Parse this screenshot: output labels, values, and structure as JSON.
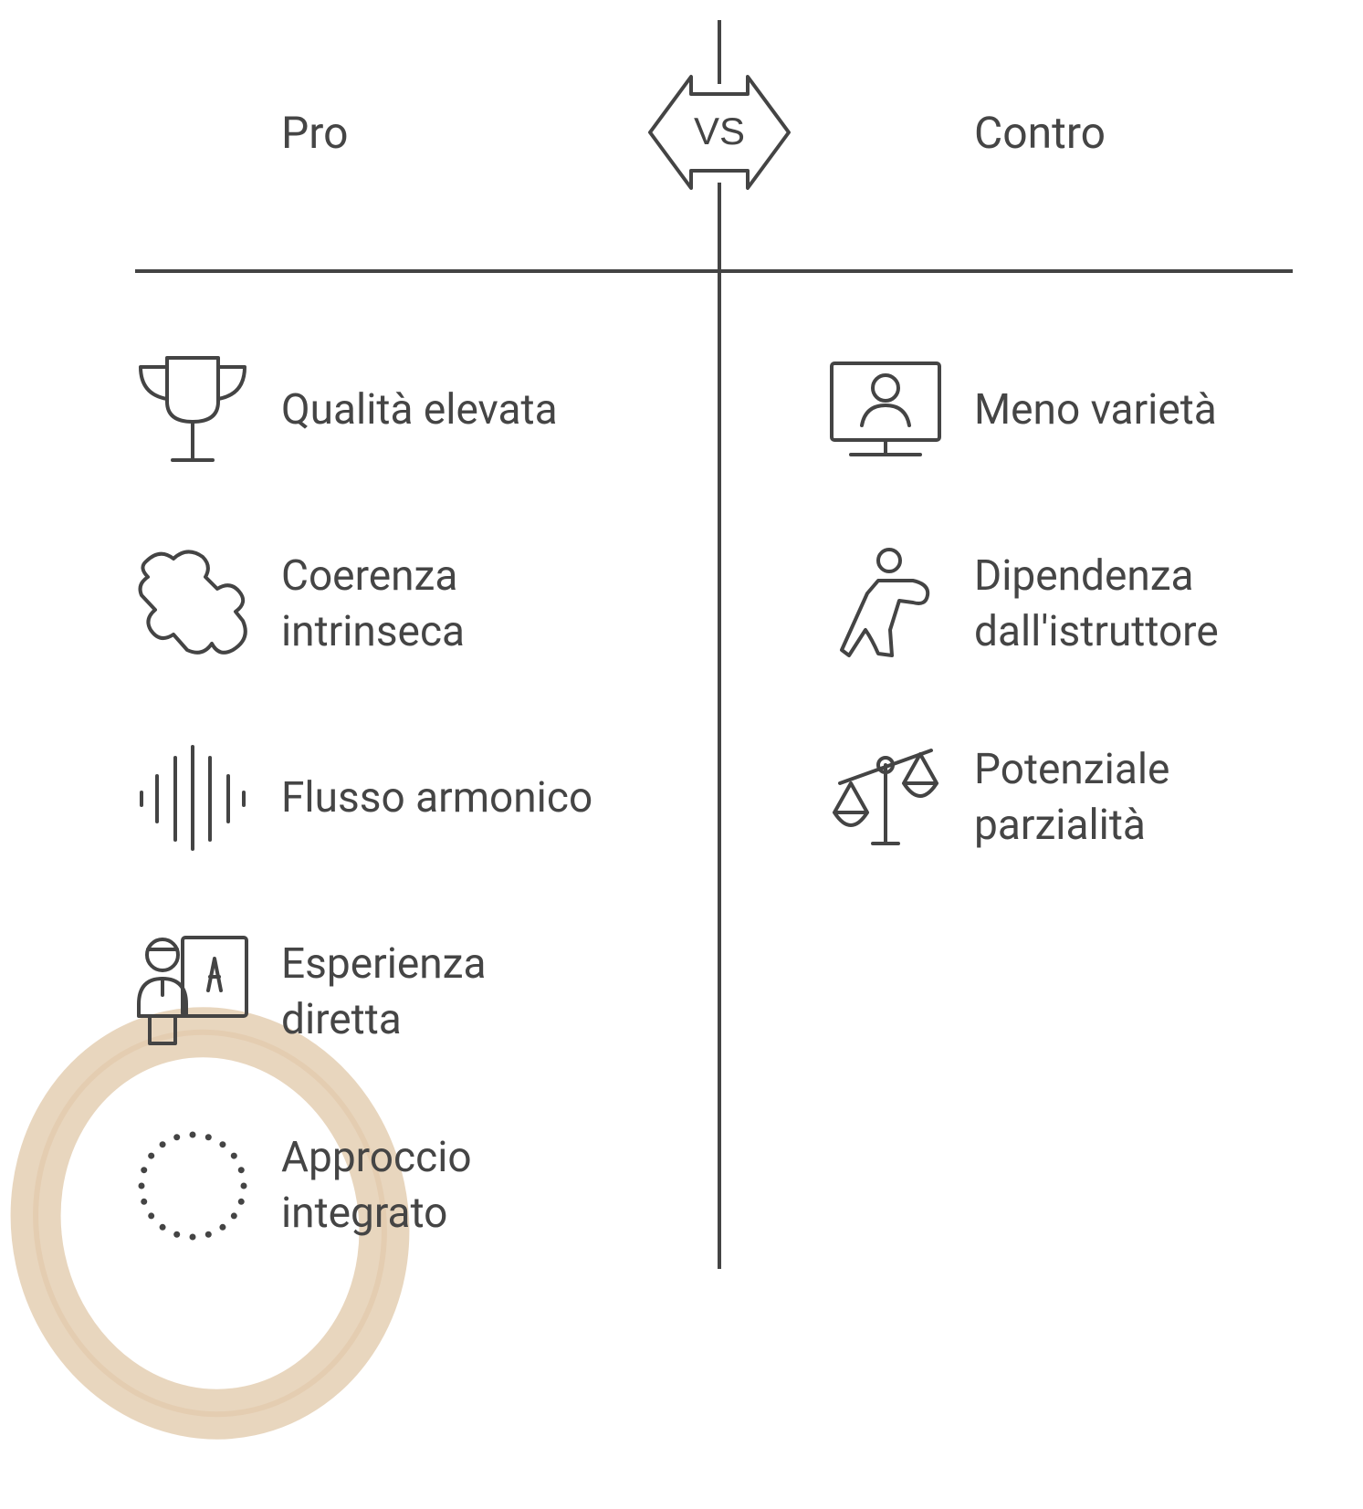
{
  "vs": "VS",
  "pros": {
    "title": "Pro",
    "items": [
      "Qualità elevata",
      "Coerenza intrinseca",
      "Flusso armonico",
      "Esperienza diretta",
      "Approccio integrato"
    ]
  },
  "cons": {
    "title": "Contro",
    "items": [
      "Meno varietà",
      "Dipendenza dall'istruttore",
      "Potenziale parzialità"
    ]
  }
}
